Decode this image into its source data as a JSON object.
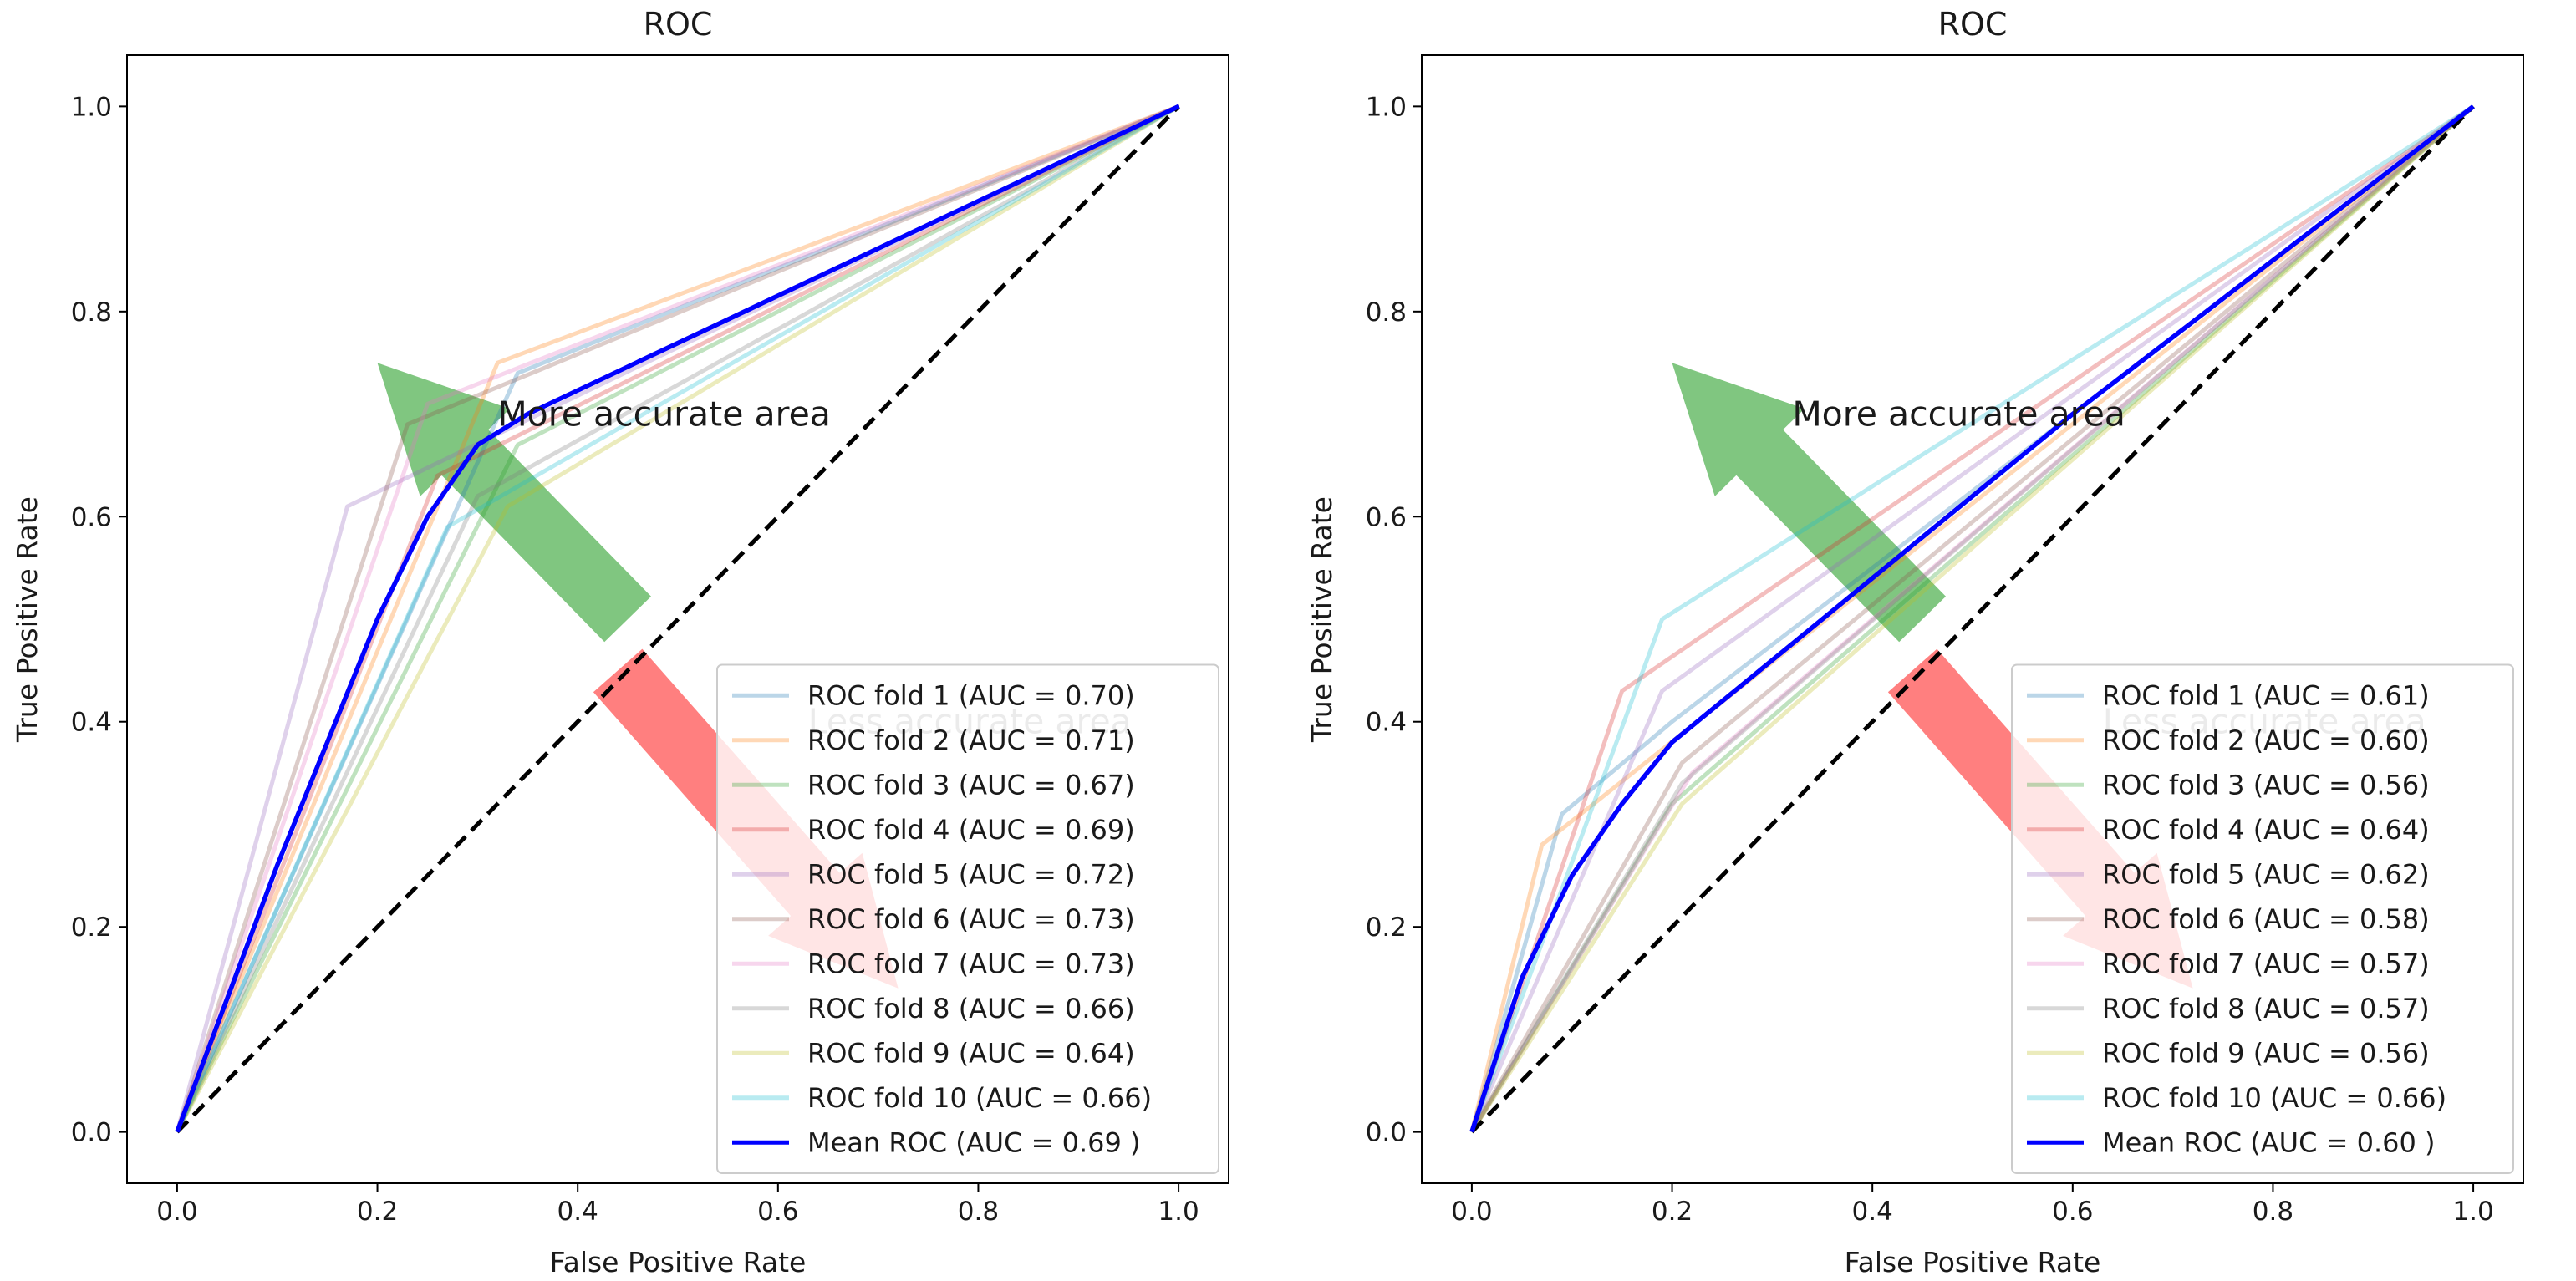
{
  "chart_data": [
    {
      "type": "line",
      "title": "ROC",
      "xlabel": "False Positive Rate",
      "ylabel": "True Positive Rate",
      "xlim": [
        -0.05,
        1.05
      ],
      "ylim": [
        -0.05,
        1.05
      ],
      "xticks": [
        "0.0",
        "0.2",
        "0.4",
        "0.6",
        "0.8",
        "1.0"
      ],
      "yticks": [
        "0.0",
        "0.2",
        "0.4",
        "0.6",
        "0.8",
        "1.0"
      ],
      "legend_position": "lower right",
      "annotations": [
        {
          "text": "More accurate area",
          "x": 0.32,
          "y": 0.7,
          "arrow": "green",
          "arrow_from": [
            0.45,
            0.5
          ],
          "arrow_to": [
            0.2,
            0.75
          ]
        },
        {
          "text": "Less accurate area",
          "x": 0.63,
          "y": 0.4,
          "arrow": "red",
          "arrow_from": [
            0.44,
            0.45
          ],
          "arrow_to": [
            0.72,
            0.14
          ]
        }
      ],
      "chance_line": {
        "x": [
          0,
          1
        ],
        "y": [
          0,
          1
        ],
        "style": "dashed",
        "color": "#000000"
      },
      "series": [
        {
          "name": "ROC fold 1",
          "label": "ROC fold 1 (AUC = 0.70)",
          "color": "#1f77b4",
          "x": [
            0,
            0.34,
            1
          ],
          "y": [
            0,
            0.74,
            1
          ]
        },
        {
          "name": "ROC fold 2",
          "label": "ROC fold 2 (AUC = 0.71)",
          "color": "#ff7f0e",
          "x": [
            0,
            0.32,
            1
          ],
          "y": [
            0,
            0.75,
            1
          ]
        },
        {
          "name": "ROC fold 3",
          "label": "ROC fold 3 (AUC = 0.67)",
          "color": "#2ca02c",
          "x": [
            0,
            0.34,
            1
          ],
          "y": [
            0,
            0.67,
            1
          ]
        },
        {
          "name": "ROC fold 4",
          "label": "ROC fold 4 (AUC = 0.69)",
          "color": "#d62728",
          "x": [
            0,
            0.26,
            1
          ],
          "y": [
            0,
            0.64,
            1
          ]
        },
        {
          "name": "ROC fold 5",
          "label": "ROC fold 5 (AUC = 0.72)",
          "color": "#9467bd",
          "x": [
            0,
            0.17,
            1
          ],
          "y": [
            0,
            0.61,
            1
          ]
        },
        {
          "name": "ROC fold 6",
          "label": "ROC fold 6 (AUC = 0.73)",
          "color": "#8c564b",
          "x": [
            0,
            0.23,
            1
          ],
          "y": [
            0,
            0.69,
            1
          ]
        },
        {
          "name": "ROC fold 7",
          "label": "ROC fold 7 (AUC = 0.73)",
          "color": "#e377c2",
          "x": [
            0,
            0.25,
            1
          ],
          "y": [
            0,
            0.71,
            1
          ]
        },
        {
          "name": "ROC fold 8",
          "label": "ROC fold 8 (AUC = 0.66)",
          "color": "#7f7f7f",
          "x": [
            0,
            0.3,
            1
          ],
          "y": [
            0,
            0.62,
            1
          ]
        },
        {
          "name": "ROC fold 9",
          "label": "ROC fold 9 (AUC = 0.64)",
          "color": "#bcbd22",
          "x": [
            0,
            0.33,
            1
          ],
          "y": [
            0,
            0.61,
            1
          ]
        },
        {
          "name": "ROC fold 10",
          "label": "ROC fold 10 (AUC = 0.66)",
          "color": "#17becf",
          "x": [
            0,
            0.27,
            1
          ],
          "y": [
            0,
            0.59,
            1
          ]
        },
        {
          "name": "Mean ROC",
          "label": "Mean ROC (AUC = 0.69 )",
          "color": "#0000ff",
          "mean": true,
          "x": [
            0,
            0.1,
            0.2,
            0.25,
            0.3,
            0.35,
            1
          ],
          "y": [
            0,
            0.26,
            0.5,
            0.6,
            0.67,
            0.7,
            1
          ]
        }
      ]
    },
    {
      "type": "line",
      "title": "ROC",
      "xlabel": "False Positive Rate",
      "ylabel": "True Positive Rate",
      "xlim": [
        -0.05,
        1.05
      ],
      "ylim": [
        -0.05,
        1.05
      ],
      "xticks": [
        "0.0",
        "0.2",
        "0.4",
        "0.6",
        "0.8",
        "1.0"
      ],
      "yticks": [
        "0.0",
        "0.2",
        "0.4",
        "0.6",
        "0.8",
        "1.0"
      ],
      "legend_position": "lower right",
      "annotations": [
        {
          "text": "More accurate area",
          "x": 0.32,
          "y": 0.7,
          "arrow": "green",
          "arrow_from": [
            0.45,
            0.5
          ],
          "arrow_to": [
            0.2,
            0.75
          ]
        },
        {
          "text": "Less accurate area",
          "x": 0.63,
          "y": 0.4,
          "arrow": "red",
          "arrow_from": [
            0.44,
            0.45
          ],
          "arrow_to": [
            0.72,
            0.14
          ]
        }
      ],
      "chance_line": {
        "x": [
          0,
          1
        ],
        "y": [
          0,
          1
        ],
        "style": "dashed",
        "color": "#000000"
      },
      "series": [
        {
          "name": "ROC fold 1",
          "label": "ROC fold 1 (AUC = 0.61)",
          "color": "#1f77b4",
          "x": [
            0,
            0.09,
            0.2,
            1
          ],
          "y": [
            0,
            0.31,
            0.4,
            1
          ]
        },
        {
          "name": "ROC fold 2",
          "label": "ROC fold 2 (AUC = 0.60)",
          "color": "#ff7f0e",
          "x": [
            0,
            0.07,
            1
          ],
          "y": [
            0,
            0.28,
            1
          ]
        },
        {
          "name": "ROC fold 3",
          "label": "ROC fold 3 (AUC = 0.56)",
          "color": "#2ca02c",
          "x": [
            0,
            0.2,
            1
          ],
          "y": [
            0,
            0.32,
            1
          ]
        },
        {
          "name": "ROC fold 4",
          "label": "ROC fold 4 (AUC = 0.64)",
          "color": "#d62728",
          "x": [
            0,
            0.15,
            1
          ],
          "y": [
            0,
            0.43,
            1
          ]
        },
        {
          "name": "ROC fold 5",
          "label": "ROC fold 5 (AUC = 0.62)",
          "color": "#9467bd",
          "x": [
            0,
            0.19,
            1
          ],
          "y": [
            0,
            0.43,
            1
          ]
        },
        {
          "name": "ROC fold 6",
          "label": "ROC fold 6 (AUC = 0.58)",
          "color": "#8c564b",
          "x": [
            0,
            0.21,
            1
          ],
          "y": [
            0,
            0.36,
            1
          ]
        },
        {
          "name": "ROC fold 7",
          "label": "ROC fold 7 (AUC = 0.57)",
          "color": "#e377c2",
          "x": [
            0,
            0.22,
            1
          ],
          "y": [
            0,
            0.35,
            1
          ]
        },
        {
          "name": "ROC fold 8",
          "label": "ROC fold 8 (AUC = 0.57)",
          "color": "#7f7f7f",
          "x": [
            0,
            0.21,
            1
          ],
          "y": [
            0,
            0.34,
            1
          ]
        },
        {
          "name": "ROC fold 9",
          "label": "ROC fold 9 (AUC = 0.56)",
          "color": "#bcbd22",
          "x": [
            0,
            0.21,
            1
          ],
          "y": [
            0,
            0.32,
            1
          ]
        },
        {
          "name": "ROC fold 10",
          "label": "ROC fold 10 (AUC = 0.66)",
          "color": "#17becf",
          "x": [
            0,
            0.19,
            1
          ],
          "y": [
            0,
            0.5,
            1
          ]
        },
        {
          "name": "Mean ROC",
          "label": "Mean ROC (AUC = 0.60 )",
          "color": "#0000ff",
          "mean": true,
          "x": [
            0,
            0.05,
            0.1,
            0.15,
            0.2,
            0.4,
            0.6,
            1
          ],
          "y": [
            0,
            0.15,
            0.25,
            0.32,
            0.38,
            0.54,
            0.7,
            1
          ]
        }
      ]
    }
  ]
}
